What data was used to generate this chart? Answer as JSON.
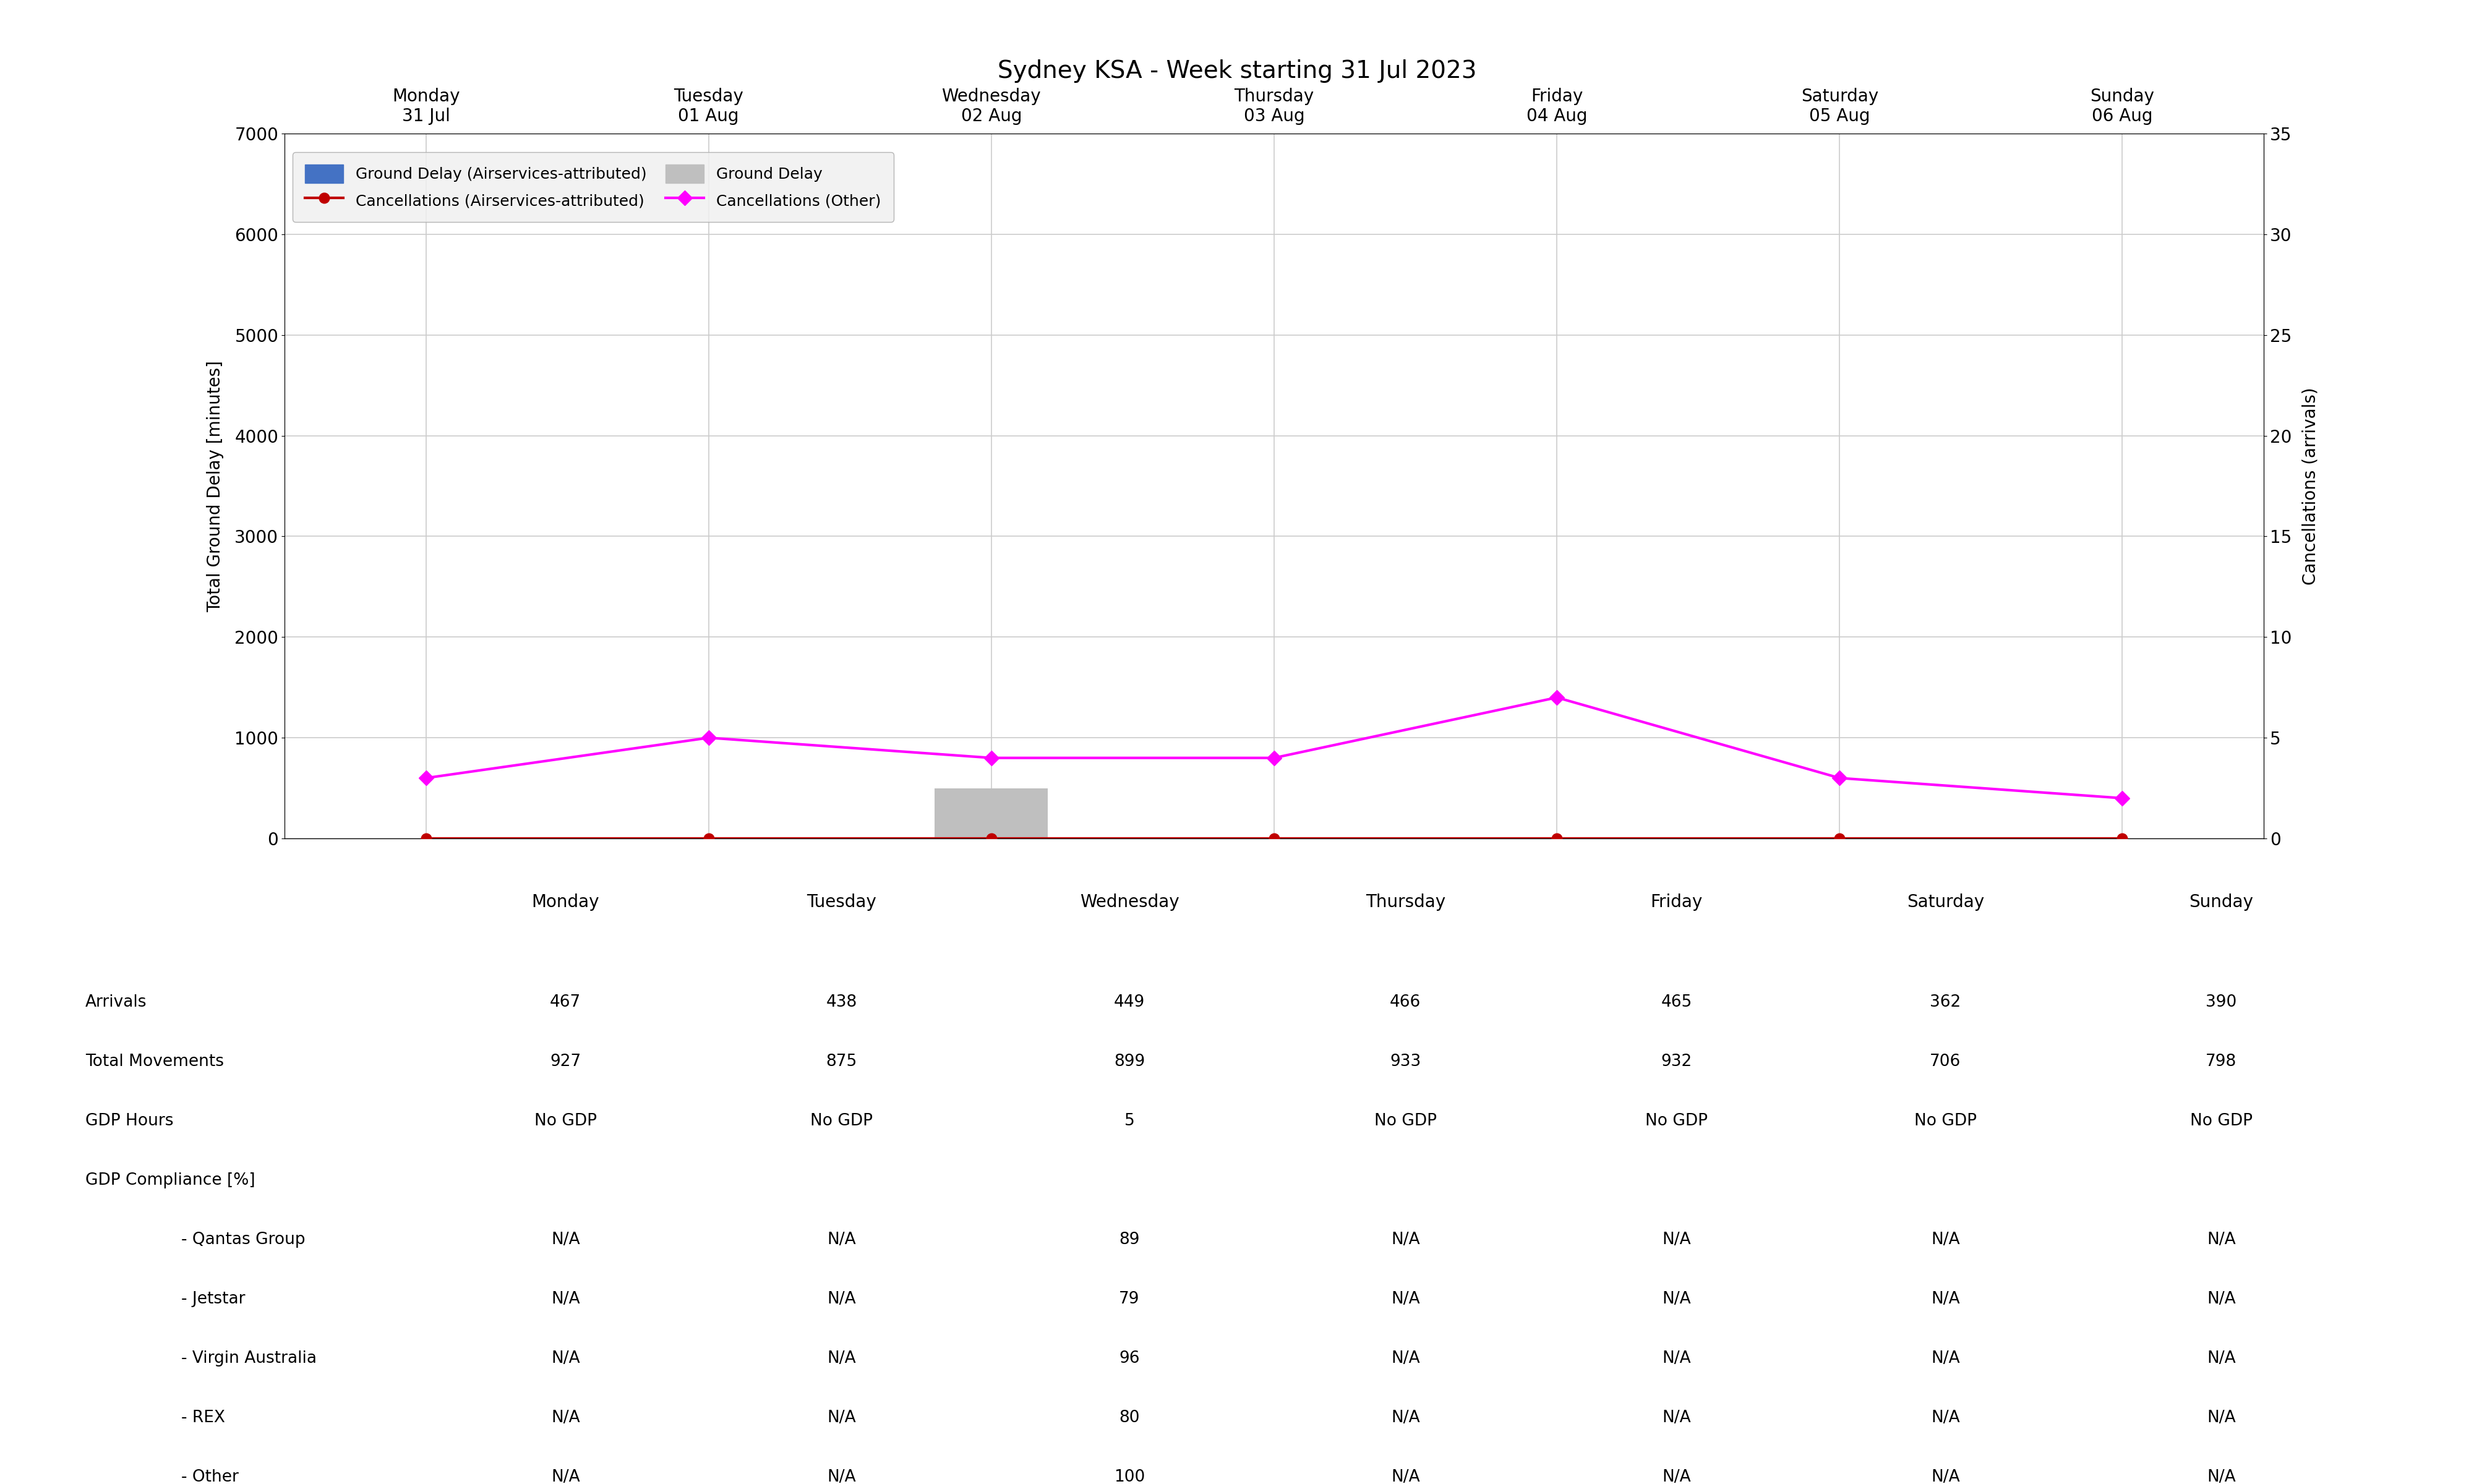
{
  "title": "Sydney KSA - Week starting 31 Jul 2023",
  "days": [
    "Monday\n31 Jul",
    "Tuesday\n01 Aug",
    "Wednesday\n02 Aug",
    "Thursday\n03 Aug",
    "Friday\n04 Aug",
    "Saturday\n05 Aug",
    "Sunday\n06 Aug"
  ],
  "x_positions": [
    0,
    1,
    2,
    3,
    4,
    5,
    6
  ],
  "ground_delay_airservices": [
    0,
    0,
    0,
    0,
    0,
    0,
    0
  ],
  "ground_delay_total": [
    0,
    0,
    500,
    0,
    0,
    0,
    0
  ],
  "cancellations_airservices": [
    0,
    0,
    0,
    0,
    0,
    0,
    0
  ],
  "cancellations_other": [
    3,
    5,
    4,
    4,
    7,
    3,
    2
  ],
  "ylim_left": [
    0,
    7000
  ],
  "ylim_right": [
    0,
    35
  ],
  "yticks_left": [
    0,
    1000,
    2000,
    3000,
    4000,
    5000,
    6000,
    7000
  ],
  "yticks_right": [
    0,
    5,
    10,
    15,
    20,
    25,
    30,
    35
  ],
  "ylabel_left": "Total Ground Delay [minutes]",
  "ylabel_right": "Cancellations (arrivals)",
  "bar_color_airservices": "#4472C4",
  "bar_color_total": "#BFBFBF",
  "line_color_airservices": "#C00000",
  "line_color_other": "#FF00FF",
  "marker_airservices": "o",
  "marker_other": "D",
  "table_rows": [
    [
      "Arrivals",
      "467",
      "438",
      "449",
      "466",
      "465",
      "362",
      "390"
    ],
    [
      "Total Movements",
      "927",
      "875",
      "899",
      "933",
      "932",
      "706",
      "798"
    ],
    [
      "GDP Hours",
      "No GDP",
      "No GDP",
      "5",
      "No GDP",
      "No GDP",
      "No GDP",
      "No GDP"
    ],
    [
      "GDP Compliance [%]",
      "",
      "",
      "",
      "",
      "",
      "",
      ""
    ],
    [
      "- Qantas Group",
      "N/A",
      "N/A",
      "89",
      "N/A",
      "N/A",
      "N/A",
      "N/A"
    ],
    [
      "- Jetstar",
      "N/A",
      "N/A",
      "79",
      "N/A",
      "N/A",
      "N/A",
      "N/A"
    ],
    [
      "- Virgin Australia",
      "N/A",
      "N/A",
      "96",
      "N/A",
      "N/A",
      "N/A",
      "N/A"
    ],
    [
      "- REX",
      "N/A",
      "N/A",
      "80",
      "N/A",
      "N/A",
      "N/A",
      "N/A"
    ],
    [
      "- Other",
      "N/A",
      "N/A",
      "100",
      "N/A",
      "N/A",
      "N/A",
      "N/A"
    ]
  ],
  "table_col_labels": [
    "Monday",
    "Tuesday",
    "Wednesday",
    "Thursday",
    "Friday",
    "Saturday",
    "Sunday"
  ],
  "background_color": "#FFFFFF",
  "grid_color": "#CCCCCC",
  "title_fontsize": 28,
  "axis_label_fontsize": 20,
  "tick_fontsize": 20,
  "legend_fontsize": 18,
  "table_header_fontsize": 20,
  "table_data_fontsize": 19
}
